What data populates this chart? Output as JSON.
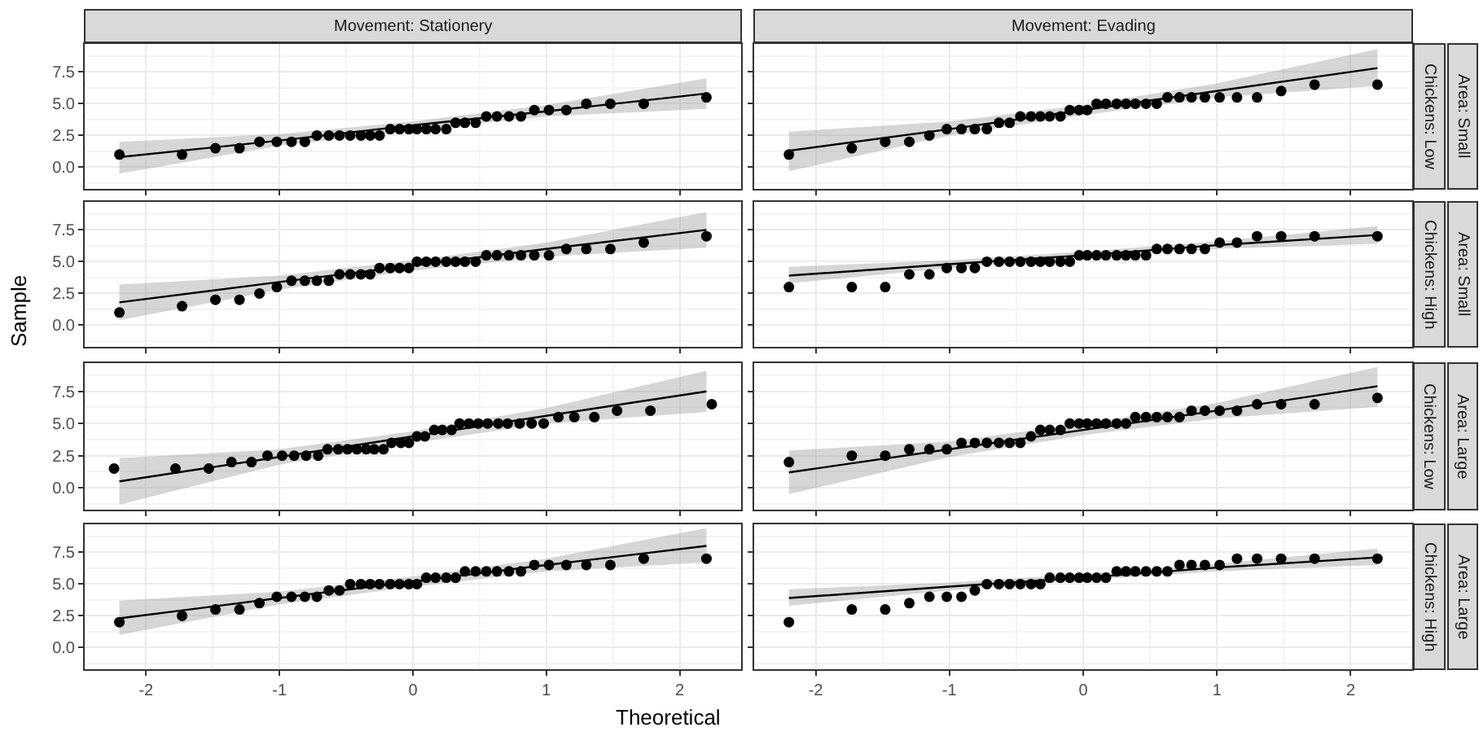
{
  "chart_data": [
    {
      "type": "scatter",
      "title": "Movement: Stationery",
      "xlim": [
        -2.46,
        2.46
      ],
      "xticks": [
        -2,
        -1,
        0,
        1,
        2
      ],
      "ylim": [
        -1.7,
        9.7
      ],
      "yticks": [
        {
          "value": 0,
          "label": "0.0"
        },
        {
          "value": 2.5,
          "label": "2.5"
        },
        {
          "value": 5,
          "label": "5.0"
        },
        {
          "value": 7.5,
          "label": "7.5"
        }
      ],
      "grid": true,
      "marker": "circle",
      "tick_labels": "y",
      "series": [
        {
          "type": "line",
          "marker": "none",
          "color": "#000000",
          "x": [
            -2.2,
            -1,
            0,
            1,
            2.2
          ],
          "values": [
            0.8,
            2.1,
            3.3,
            4.4,
            5.8
          ],
          "lower": [
            -0.5,
            1.7,
            2.9,
            4.0,
            4.6
          ],
          "upper": [
            2.0,
            2.6,
            3.6,
            4.9,
            7.0
          ]
        },
        {
          "color": "#000000",
          "x": [
            -2.2,
            -1.73,
            -1.48,
            -1.3,
            -1.15,
            -1.02,
            -0.91,
            -0.81,
            -0.72,
            -0.63,
            -0.55,
            -0.47,
            -0.39,
            -0.32,
            -0.25,
            -0.17,
            -0.1,
            -0.03,
            0.03,
            0.1,
            0.17,
            0.25,
            0.32,
            0.39,
            0.47,
            0.55,
            0.63,
            0.72,
            0.81,
            0.91,
            1.02,
            1.15,
            1.3,
            1.48,
            1.73,
            2.2
          ],
          "values": [
            1,
            1,
            1.5,
            1.5,
            2,
            2,
            2,
            2,
            2.5,
            2.5,
            2.5,
            2.5,
            2.5,
            2.5,
            2.5,
            3,
            3,
            3,
            3,
            3,
            3,
            3,
            3.5,
            3.5,
            3.5,
            4,
            4,
            4,
            4,
            4.5,
            4.5,
            4.5,
            5,
            5,
            5,
            5.5
          ]
        }
      ]
    },
    {
      "type": "scatter",
      "title": "Movement: Evading",
      "annotations": [
        "Chickens: Low",
        "Area: Small"
      ],
      "xlim": [
        -2.46,
        2.46
      ],
      "xticks": [
        -2,
        -1,
        0,
        1,
        2
      ],
      "ylim": [
        -1.7,
        9.7
      ],
      "yticks": [
        0,
        2.5,
        5,
        7.5
      ],
      "grid": true,
      "marker": "circle",
      "tick_labels": false,
      "series": [
        {
          "type": "line",
          "marker": "none",
          "color": "#000000",
          "x": [
            -2.2,
            -1,
            0,
            1,
            2.2
          ],
          "values": [
            1.3,
            3.0,
            4.5,
            6.0,
            7.8
          ],
          "lower": [
            -0.3,
            2.5,
            4.1,
            5.5,
            6.4
          ],
          "upper": [
            2.8,
            3.6,
            4.9,
            6.6,
            9.3
          ]
        },
        {
          "color": "#000000",
          "x": [
            -2.2,
            -1.73,
            -1.48,
            -1.3,
            -1.15,
            -1.02,
            -0.91,
            -0.81,
            -0.72,
            -0.63,
            -0.55,
            -0.47,
            -0.39,
            -0.32,
            -0.25,
            -0.17,
            -0.1,
            -0.03,
            0.03,
            0.1,
            0.17,
            0.25,
            0.32,
            0.39,
            0.47,
            0.55,
            0.63,
            0.72,
            0.81,
            0.91,
            1.02,
            1.15,
            1.3,
            1.48,
            1.73,
            2.2
          ],
          "values": [
            1,
            1.5,
            2,
            2,
            2.5,
            3,
            3,
            3,
            3,
            3.5,
            3.5,
            4,
            4,
            4,
            4,
            4,
            4.5,
            4.5,
            4.5,
            5,
            5,
            5,
            5,
            5,
            5,
            5,
            5.5,
            5.5,
            5.5,
            5.5,
            5.5,
            5.5,
            5.5,
            6,
            6.5,
            6.5
          ]
        }
      ]
    },
    {
      "type": "scatter",
      "ylabel": "Sample",
      "xlim": [
        -2.46,
        2.46
      ],
      "xticks": [
        -2,
        -1,
        0,
        1,
        2
      ],
      "ylim": [
        -1.7,
        9.7
      ],
      "yticks": [
        {
          "value": 0,
          "label": "0.0"
        },
        {
          "value": 2.5,
          "label": "2.5"
        },
        {
          "value": 5,
          "label": "5.0"
        },
        {
          "value": 7.5,
          "label": "7.5"
        }
      ],
      "grid": true,
      "marker": "circle",
      "tick_labels": "y",
      "series": [
        {
          "type": "line",
          "marker": "none",
          "color": "#000000",
          "x": [
            -2.2,
            -1,
            0,
            1,
            2.2
          ],
          "values": [
            1.8,
            3.4,
            4.7,
            6.0,
            7.5
          ],
          "lower": [
            0.4,
            2.8,
            4.3,
            5.4,
            6.1
          ],
          "upper": [
            3.2,
            3.9,
            5.1,
            6.5,
            8.9
          ]
        },
        {
          "color": "#000000",
          "x": [
            -2.2,
            -1.73,
            -1.48,
            -1.3,
            -1.15,
            -1.02,
            -0.91,
            -0.81,
            -0.72,
            -0.63,
            -0.55,
            -0.47,
            -0.39,
            -0.32,
            -0.25,
            -0.17,
            -0.1,
            -0.03,
            0.03,
            0.1,
            0.17,
            0.25,
            0.32,
            0.39,
            0.47,
            0.55,
            0.63,
            0.72,
            0.81,
            0.91,
            1.02,
            1.15,
            1.3,
            1.48,
            1.73,
            2.2
          ],
          "values": [
            1,
            1.5,
            2,
            2,
            2.5,
            3,
            3.5,
            3.5,
            3.5,
            3.5,
            4,
            4,
            4,
            4,
            4.5,
            4.5,
            4.5,
            4.5,
            5,
            5,
            5,
            5,
            5,
            5,
            5,
            5.5,
            5.5,
            5.5,
            5.5,
            5.5,
            5.5,
            6,
            6,
            6,
            6.5,
            7
          ]
        }
      ]
    },
    {
      "type": "scatter",
      "annotations": [
        "Chickens: High",
        "Area: Small"
      ],
      "xlim": [
        -2.46,
        2.46
      ],
      "xticks": [
        -2,
        -1,
        0,
        1,
        2
      ],
      "ylim": [
        -1.7,
        9.7
      ],
      "yticks": [
        0,
        2.5,
        5,
        7.5
      ],
      "grid": true,
      "marker": "circle",
      "tick_labels": false,
      "series": [
        {
          "type": "line",
          "marker": "none",
          "color": "#000000",
          "x": [
            -2.2,
            -1,
            0,
            1,
            2.2
          ],
          "values": [
            3.9,
            4.8,
            5.5,
            6.3,
            7.1
          ],
          "lower": [
            3.3,
            4.5,
            5.3,
            6.0,
            6.4
          ],
          "upper": [
            4.6,
            5.1,
            5.8,
            6.6,
            7.8
          ]
        },
        {
          "color": "#000000",
          "x": [
            -2.2,
            -1.73,
            -1.48,
            -1.3,
            -1.15,
            -1.02,
            -0.91,
            -0.81,
            -0.72,
            -0.63,
            -0.55,
            -0.47,
            -0.39,
            -0.32,
            -0.25,
            -0.17,
            -0.1,
            -0.03,
            0.03,
            0.1,
            0.17,
            0.25,
            0.32,
            0.39,
            0.47,
            0.55,
            0.63,
            0.72,
            0.81,
            0.91,
            1.02,
            1.15,
            1.3,
            1.48,
            1.73,
            2.2
          ],
          "values": [
            3,
            3,
            3,
            4,
            4,
            4.5,
            4.5,
            4.5,
            5,
            5,
            5,
            5,
            5,
            5,
            5,
            5,
            5,
            5.5,
            5.5,
            5.5,
            5.5,
            5.5,
            5.5,
            5.5,
            5.5,
            6,
            6,
            6,
            6,
            6,
            6.5,
            6.5,
            7,
            7,
            7,
            7
          ]
        }
      ]
    },
    {
      "type": "scatter",
      "xlim": [
        -2.46,
        2.46
      ],
      "xticks": [
        -2,
        -1,
        0,
        1,
        2
      ],
      "ylim": [
        -1.7,
        9.7
      ],
      "yticks": [
        {
          "value": 0,
          "label": "0.0"
        },
        {
          "value": 2.5,
          "label": "2.5"
        },
        {
          "value": 5,
          "label": "5.0"
        },
        {
          "value": 7.5,
          "label": "7.5"
        }
      ],
      "grid": true,
      "marker": "circle",
      "tick_labels": "y",
      "series": [
        {
          "type": "line",
          "marker": "none",
          "color": "#000000",
          "x": [
            -2.2,
            -1,
            0,
            1,
            2.2
          ],
          "values": [
            0.5,
            2.4,
            4.0,
            5.6,
            7.5
          ],
          "lower": [
            -1.3,
            1.8,
            3.5,
            5.0,
            5.9
          ],
          "upper": [
            2.3,
            3.0,
            4.4,
            6.2,
            9.1
          ]
        },
        {
          "color": "#000000",
          "x": [
            -2.24,
            -1.78,
            -1.53,
            -1.36,
            -1.21,
            -1.09,
            -0.98,
            -0.89,
            -0.8,
            -0.71,
            -0.64,
            -0.56,
            -0.49,
            -0.42,
            -0.35,
            -0.29,
            -0.22,
            -0.16,
            -0.09,
            -0.03,
            0.03,
            0.09,
            0.16,
            0.22,
            0.29,
            0.35,
            0.42,
            0.49,
            0.56,
            0.64,
            0.71,
            0.8,
            0.89,
            0.98,
            1.09,
            1.21,
            1.36,
            1.53,
            1.78,
            2.24
          ],
          "values": [
            1.5,
            1.5,
            1.5,
            2,
            2,
            2.5,
            2.5,
            2.5,
            2.5,
            2.5,
            3,
            3,
            3,
            3,
            3,
            3,
            3,
            3.5,
            3.5,
            3.5,
            4,
            4,
            4.5,
            4.5,
            4.5,
            5,
            5,
            5,
            5,
            5,
            5,
            5,
            5,
            5,
            5.5,
            5.5,
            5.5,
            6,
            6,
            6.5
          ]
        }
      ]
    },
    {
      "type": "scatter",
      "annotations": [
        "Chickens: Low",
        "Area: Large"
      ],
      "xlim": [
        -2.46,
        2.46
      ],
      "xticks": [
        -2,
        -1,
        0,
        1,
        2
      ],
      "ylim": [
        -1.7,
        9.7
      ],
      "yticks": [
        0,
        2.5,
        5,
        7.5
      ],
      "grid": true,
      "marker": "circle",
      "tick_labels": false,
      "series": [
        {
          "type": "line",
          "marker": "none",
          "color": "#000000",
          "x": [
            -2.2,
            -1,
            0,
            1,
            2.2
          ],
          "values": [
            1.2,
            3.0,
            4.5,
            6.0,
            7.9
          ],
          "lower": [
            -0.5,
            2.4,
            4.1,
            5.4,
            6.3
          ],
          "upper": [
            2.9,
            3.6,
            5.0,
            6.6,
            9.4
          ]
        },
        {
          "color": "#000000",
          "x": [
            -2.2,
            -1.73,
            -1.48,
            -1.3,
            -1.15,
            -1.02,
            -0.91,
            -0.81,
            -0.72,
            -0.63,
            -0.55,
            -0.47,
            -0.39,
            -0.32,
            -0.25,
            -0.17,
            -0.1,
            -0.03,
            0.03,
            0.1,
            0.17,
            0.25,
            0.32,
            0.39,
            0.47,
            0.55,
            0.63,
            0.72,
            0.81,
            0.91,
            1.02,
            1.15,
            1.3,
            1.48,
            1.73,
            2.2
          ],
          "values": [
            2,
            2.5,
            2.5,
            3,
            3,
            3,
            3.5,
            3.5,
            3.5,
            3.5,
            3.5,
            3.5,
            4,
            4.5,
            4.5,
            4.5,
            5,
            5,
            5,
            5,
            5,
            5,
            5,
            5.5,
            5.5,
            5.5,
            5.5,
            5.5,
            6,
            6,
            6,
            6,
            6.5,
            6.5,
            6.5,
            7
          ]
        }
      ]
    },
    {
      "type": "scatter",
      "xlabel": "Theoretical",
      "xlim": [
        -2.46,
        2.46
      ],
      "xticks": [
        -2,
        -1,
        0,
        1,
        2
      ],
      "ylim": [
        -1.7,
        9.7
      ],
      "yticks": [
        {
          "value": 0,
          "label": "0.0"
        },
        {
          "value": 2.5,
          "label": "2.5"
        },
        {
          "value": 5,
          "label": "5.0"
        },
        {
          "value": 7.5,
          "label": "7.5"
        }
      ],
      "grid": true,
      "marker": "circle",
      "series": [
        {
          "type": "line",
          "marker": "none",
          "color": "#000000",
          "x": [
            -2.2,
            -1,
            0,
            1,
            2.2
          ],
          "values": [
            2.3,
            3.9,
            5.2,
            6.5,
            8.0
          ],
          "lower": [
            1.0,
            3.4,
            4.8,
            6.0,
            6.7
          ],
          "upper": [
            3.7,
            4.4,
            5.6,
            7.0,
            9.4
          ]
        },
        {
          "color": "#000000",
          "x": [
            -2.2,
            -1.73,
            -1.48,
            -1.3,
            -1.15,
            -1.02,
            -0.91,
            -0.81,
            -0.72,
            -0.63,
            -0.55,
            -0.47,
            -0.39,
            -0.32,
            -0.25,
            -0.17,
            -0.1,
            -0.03,
            0.03,
            0.1,
            0.17,
            0.25,
            0.32,
            0.39,
            0.47,
            0.55,
            0.63,
            0.72,
            0.81,
            0.91,
            1.02,
            1.15,
            1.3,
            1.48,
            1.73,
            2.2
          ],
          "values": [
            2,
            2.5,
            3,
            3,
            3.5,
            4,
            4,
            4,
            4,
            4.5,
            4.5,
            5,
            5,
            5,
            5,
            5,
            5,
            5,
            5,
            5.5,
            5.5,
            5.5,
            5.5,
            6,
            6,
            6,
            6,
            6,
            6,
            6.5,
            6.5,
            6.5,
            6.5,
            6.5,
            7,
            7
          ]
        }
      ]
    },
    {
      "type": "scatter",
      "annotations": [
        "Chickens: High",
        "Area: Large"
      ],
      "xlim": [
        -2.46,
        2.46
      ],
      "xticks": [
        -2,
        -1,
        0,
        1,
        2
      ],
      "ylim": [
        -1.7,
        9.7
      ],
      "yticks": [
        0,
        2.5,
        5,
        7.5
      ],
      "grid": true,
      "marker": "circle",
      "tick_labels": "x",
      "series": [
        {
          "type": "line",
          "marker": "none",
          "color": "#000000",
          "x": [
            -2.2,
            -1,
            0,
            1,
            2.2
          ],
          "values": [
            3.9,
            4.8,
            5.5,
            6.3,
            7.1
          ],
          "lower": [
            3.3,
            4.5,
            5.3,
            6.0,
            6.5
          ],
          "upper": [
            4.6,
            5.1,
            5.8,
            6.6,
            7.8
          ]
        },
        {
          "color": "#000000",
          "x": [
            -2.2,
            -1.73,
            -1.48,
            -1.3,
            -1.15,
            -1.02,
            -0.91,
            -0.81,
            -0.72,
            -0.63,
            -0.55,
            -0.47,
            -0.39,
            -0.32,
            -0.25,
            -0.17,
            -0.1,
            -0.03,
            0.03,
            0.1,
            0.17,
            0.25,
            0.32,
            0.39,
            0.47,
            0.55,
            0.63,
            0.72,
            0.81,
            0.91,
            1.02,
            1.15,
            1.3,
            1.48,
            1.73,
            2.2
          ],
          "values": [
            2,
            3,
            3,
            3.5,
            4,
            4,
            4,
            4.5,
            5,
            5,
            5,
            5,
            5,
            5,
            5.5,
            5.5,
            5.5,
            5.5,
            5.5,
            5.5,
            5.5,
            6,
            6,
            6,
            6,
            6,
            6,
            6.5,
            6.5,
            6.5,
            6.5,
            7,
            7,
            7,
            7,
            7
          ]
        }
      ]
    }
  ]
}
